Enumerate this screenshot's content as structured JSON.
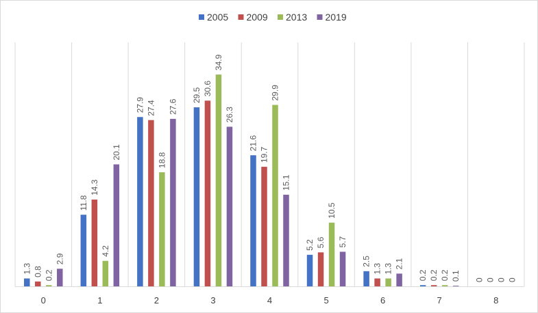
{
  "chart_data": {
    "type": "bar",
    "title": "",
    "xlabel": "",
    "ylabel": "",
    "ylim": [
      0,
      40
    ],
    "grid": "vertical category separators",
    "legend_position": "top",
    "categories": [
      "0",
      "1",
      "2",
      "3",
      "4",
      "5",
      "6",
      "7",
      "8"
    ],
    "series": [
      {
        "name": "2005",
        "color": "#4472c4",
        "values": [
          1.3,
          11.8,
          27.9,
          29.5,
          21.6,
          5.2,
          2.5,
          0.2,
          0
        ]
      },
      {
        "name": "2009",
        "color": "#c0504d",
        "values": [
          0.8,
          14.3,
          27.4,
          30.6,
          19.7,
          5.6,
          1.3,
          0.2,
          0
        ]
      },
      {
        "name": "2013",
        "color": "#9bbb59",
        "values": [
          0.2,
          4.2,
          18.8,
          34.9,
          29.9,
          10.5,
          1.3,
          0.2,
          0
        ]
      },
      {
        "name": "2019",
        "color": "#8064a2",
        "values": [
          2.9,
          20.1,
          27.6,
          26.3,
          15.1,
          5.7,
          2.1,
          0.1,
          0
        ]
      }
    ]
  }
}
